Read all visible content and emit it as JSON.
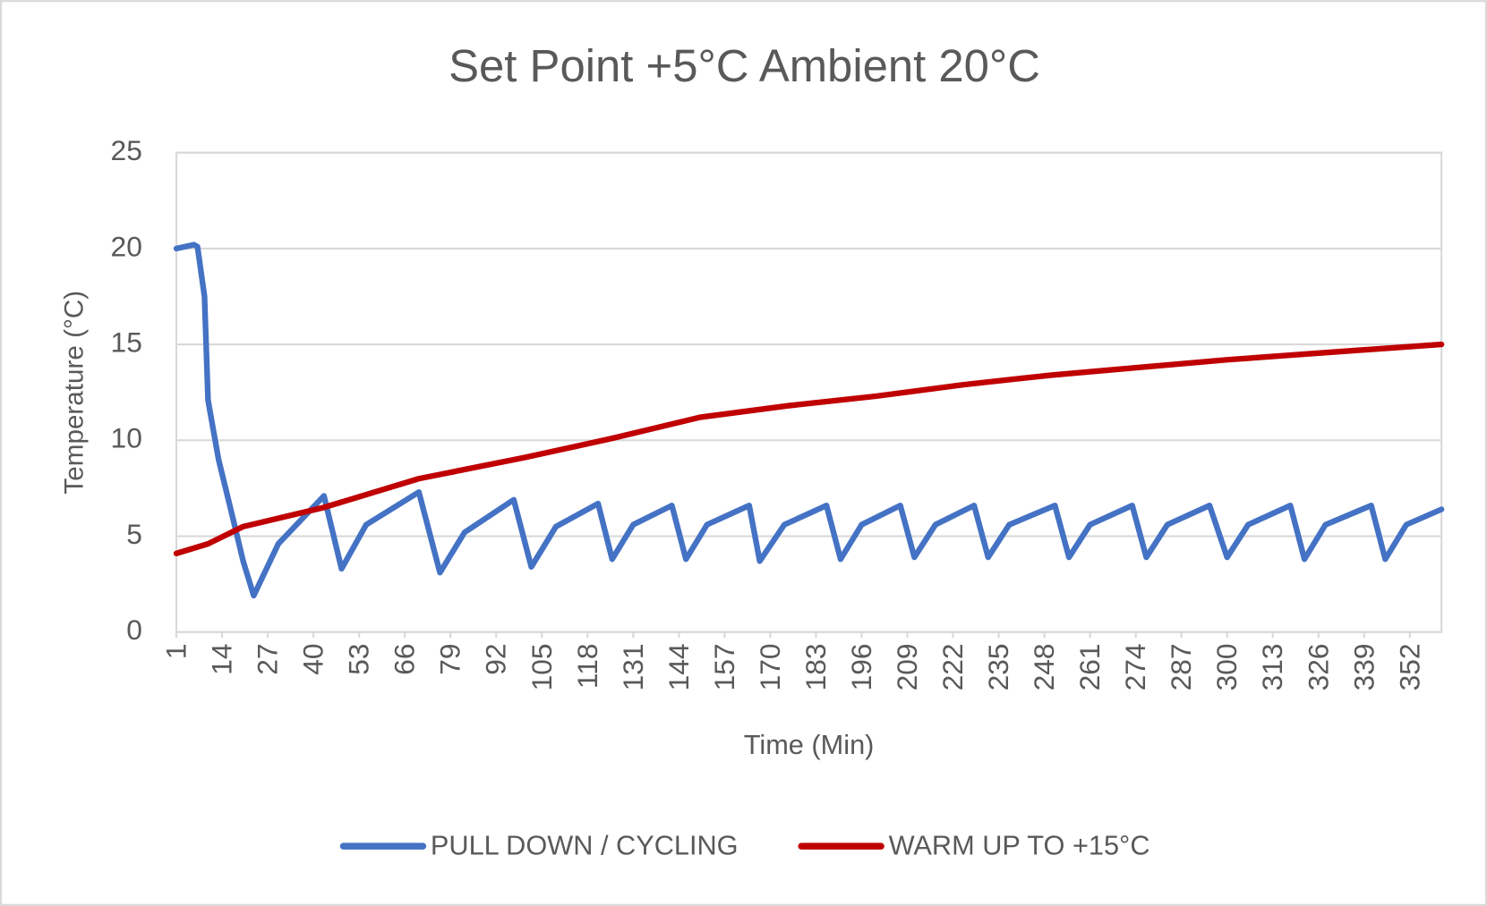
{
  "chart_data": {
    "type": "line",
    "title": "Set Point +5°C Ambient 20°C",
    "x_label": "Time (Min)",
    "y_label": "Temperature (°C)",
    "xlim": [
      1,
      361
    ],
    "xticks": [
      1,
      14,
      27,
      40,
      53,
      66,
      79,
      92,
      105,
      118,
      131,
      144,
      157,
      170,
      183,
      196,
      209,
      222,
      235,
      248,
      261,
      274,
      287,
      300,
      313,
      326,
      339,
      352
    ],
    "ylim": [
      0,
      25
    ],
    "yticks": [
      0,
      5,
      10,
      15,
      20,
      25
    ],
    "grid": true,
    "legend": "bottom",
    "series": [
      {
        "name": "PULL DOWN / CYCLING",
        "color": "#4472c4",
        "x": [
          1,
          6,
          7,
          9,
          10,
          13,
          17,
          20,
          23,
          30,
          43,
          48,
          55,
          70,
          76,
          83,
          97,
          102,
          109,
          121,
          125,
          131,
          142,
          146,
          152,
          164,
          167,
          174,
          186,
          190,
          196,
          207,
          211,
          217,
          228,
          232,
          238,
          251,
          255,
          261,
          273,
          277,
          283,
          295,
          300,
          306,
          318,
          322,
          328,
          341,
          345,
          351,
          361
        ],
        "values": [
          20,
          20.2,
          20.1,
          17.5,
          12.1,
          9,
          6,
          3.7,
          1.9,
          4.6,
          7.1,
          3.3,
          5.6,
          7.3,
          3.1,
          5.2,
          6.9,
          3.4,
          5.5,
          6.7,
          3.8,
          5.6,
          6.6,
          3.8,
          5.6,
          6.6,
          3.7,
          5.6,
          6.6,
          3.8,
          5.6,
          6.6,
          3.9,
          5.6,
          6.6,
          3.9,
          5.6,
          6.6,
          3.9,
          5.6,
          6.6,
          3.9,
          5.6,
          6.6,
          3.9,
          5.6,
          6.6,
          3.8,
          5.6,
          6.6,
          3.8,
          5.6,
          6.4
        ]
      },
      {
        "name": "WARM UP TO +15°C",
        "color": "#c00000",
        "x": [
          1,
          10,
          20,
          43,
          70,
          100,
          125,
          150,
          175,
          200,
          225,
          250,
          275,
          300,
          330,
          361
        ],
        "values": [
          4.1,
          4.6,
          5.5,
          6.5,
          8.0,
          9.1,
          10.1,
          11.2,
          11.8,
          12.3,
          12.9,
          13.4,
          13.8,
          14.2,
          14.6,
          15.0
        ]
      }
    ]
  }
}
